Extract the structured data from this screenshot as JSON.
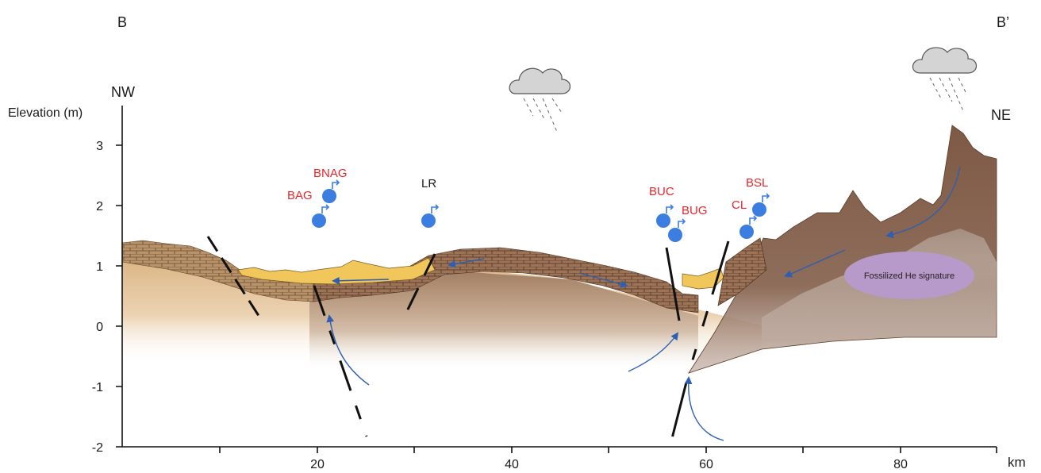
{
  "section": {
    "start_label": "B",
    "end_label": "B’",
    "left_direction": "NW",
    "right_direction": "NE"
  },
  "y_axis": {
    "title": "Elevation (m)",
    "ticks": [
      "3",
      "2",
      "1",
      "0",
      "-1",
      "-2"
    ]
  },
  "x_axis": {
    "unit": "km",
    "ticks": [
      "20",
      "40",
      "60",
      "80"
    ]
  },
  "wells": [
    {
      "label": "BNAG"
    },
    {
      "label": "BAG"
    },
    {
      "label": "LR"
    },
    {
      "label": "BUC"
    },
    {
      "label": "BUG"
    },
    {
      "label": "BSL"
    },
    {
      "label": "CL"
    }
  ],
  "annotation": {
    "fossil_label": "Fossilized He signature"
  },
  "colors": {
    "well_marker": "#3b7de0",
    "flow_arrow": "#2e5fb0",
    "label_red": "#e8262a",
    "fossil_zone": "#b79ac9"
  },
  "icons": [
    "rain-cloud-icon",
    "well-marker-icon"
  ]
}
